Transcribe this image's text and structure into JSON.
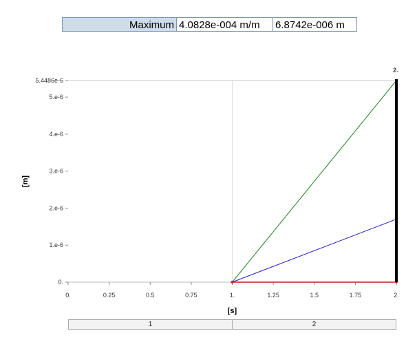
{
  "maximum_row": {
    "label": "Maximum",
    "value_1": "4.0828e-004 m/m",
    "value_2": "6.8742e-006 m"
  },
  "step_bar": {
    "steps": [
      "1",
      "2"
    ]
  },
  "chart_data": {
    "type": "line",
    "xlabel": "[s]",
    "ylabel": "[m]",
    "xlim": [
      0,
      2
    ],
    "ylim": [
      0,
      5.4486e-06
    ],
    "x_ticks": [
      {
        "value": 0,
        "label": "0."
      },
      {
        "value": 0.25,
        "label": "0.25"
      },
      {
        "value": 0.5,
        "label": "0.5"
      },
      {
        "value": 0.75,
        "label": "0.75"
      },
      {
        "value": 1,
        "label": "1."
      },
      {
        "value": 1.25,
        "label": "1.25"
      },
      {
        "value": 1.5,
        "label": "1.5"
      },
      {
        "value": 1.75,
        "label": "1.75"
      },
      {
        "value": 2,
        "label": "2."
      }
    ],
    "y_ticks": [
      {
        "value": 0,
        "label": "0."
      },
      {
        "value": 1e-06,
        "label": "1.e-6"
      },
      {
        "value": 2e-06,
        "label": "2.e-6"
      },
      {
        "value": 3e-06,
        "label": "3.e-6"
      },
      {
        "value": 4e-06,
        "label": "4.e-6"
      },
      {
        "value": 5e-06,
        "label": "5.e-6"
      },
      {
        "value": 5.4486e-06,
        "label": "5.4486e-6"
      }
    ],
    "series": [
      {
        "color": "#208020",
        "x": [
          1,
          2
        ],
        "y": [
          0,
          5.4486e-06
        ]
      },
      {
        "color": "#1a1acc",
        "x": [
          1,
          2
        ],
        "y": [
          0,
          1.7e-06
        ]
      },
      {
        "color": "#cc1a1a",
        "x": [
          1,
          2
        ],
        "y": [
          0,
          0
        ]
      }
    ],
    "cursor": {
      "x": 2,
      "label": "2."
    },
    "step_boundary": 1,
    "grid": false
  }
}
